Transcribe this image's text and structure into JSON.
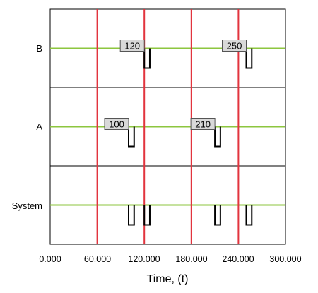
{
  "x_axis": {
    "title": "Time, (t)",
    "min": 0,
    "max": 300,
    "ticks": [
      0,
      60,
      120,
      180,
      240,
      300
    ],
    "tick_labels": [
      "0.000",
      "60.000",
      "120.000",
      "180.000",
      "240.000",
      "300.000"
    ]
  },
  "markers": [
    60,
    120,
    180,
    240
  ],
  "rows": [
    {
      "label": "B",
      "events": [
        {
          "label": "120",
          "start": 120,
          "end": 127
        },
        {
          "label": "250",
          "start": 250,
          "end": 257
        }
      ]
    },
    {
      "label": "A",
      "events": [
        {
          "label": "100",
          "start": 100,
          "end": 107
        },
        {
          "label": "210",
          "start": 210,
          "end": 217
        }
      ]
    },
    {
      "label": "System",
      "events": [
        {
          "label": "",
          "start": 100,
          "end": 107
        },
        {
          "label": "",
          "start": 120,
          "end": 127
        },
        {
          "label": "",
          "start": 210,
          "end": 217
        },
        {
          "label": "",
          "start": 250,
          "end": 257
        }
      ]
    }
  ],
  "colors": {
    "state_line": "#8dc63f",
    "marker_line": "#e2343e",
    "down_state": "#000000",
    "frame": "#000000",
    "label_box_fill": "#d9d9d9",
    "label_box_stroke": "#555555"
  }
}
